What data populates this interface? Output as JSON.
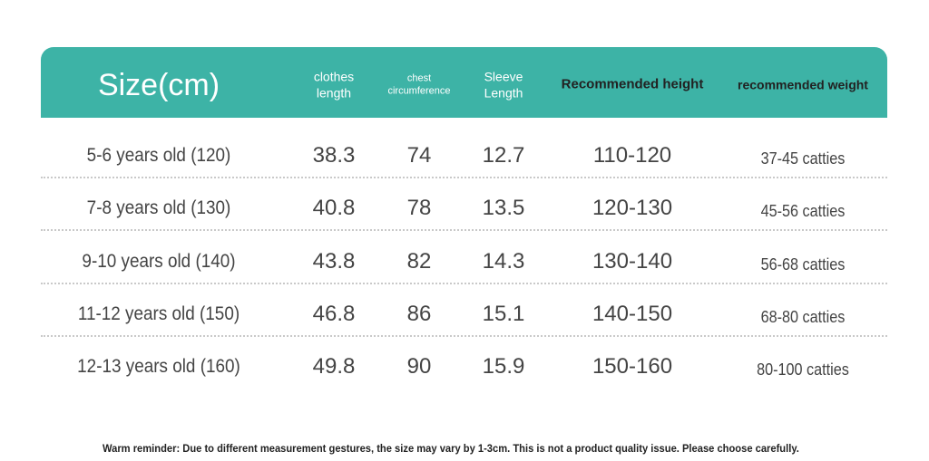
{
  "table": {
    "header": [
      [
        "Size(cm)"
      ],
      [
        "clothes",
        "length"
      ],
      [
        "chest",
        "circumference"
      ],
      [
        "Sleeve",
        "Length"
      ],
      [
        "Recommended height"
      ],
      [
        "recommended weight"
      ]
    ],
    "rows": [
      [
        "5-6 years old (120)",
        "38.3",
        "74",
        "12.7",
        "110-120",
        "37-45 catties"
      ],
      [
        "7-8 years old (130)",
        "40.8",
        "78",
        "13.5",
        "120-130",
        "45-56 catties"
      ],
      [
        "9-10 years old (140)",
        "43.8",
        "82",
        "14.3",
        "130-140",
        "56-68 catties"
      ],
      [
        "11-12 years old (150)",
        "46.8",
        "86",
        "15.1",
        "140-150",
        "68-80 catties"
      ],
      [
        "12-13 years old (160)",
        "49.8",
        "90",
        "15.9",
        "150-160",
        "80-100 catties"
      ]
    ]
  },
  "note": "Warm reminder: Due to different measurement gestures, the size may vary by 1-3cm. This is not a product quality issue. Please choose carefully."
}
